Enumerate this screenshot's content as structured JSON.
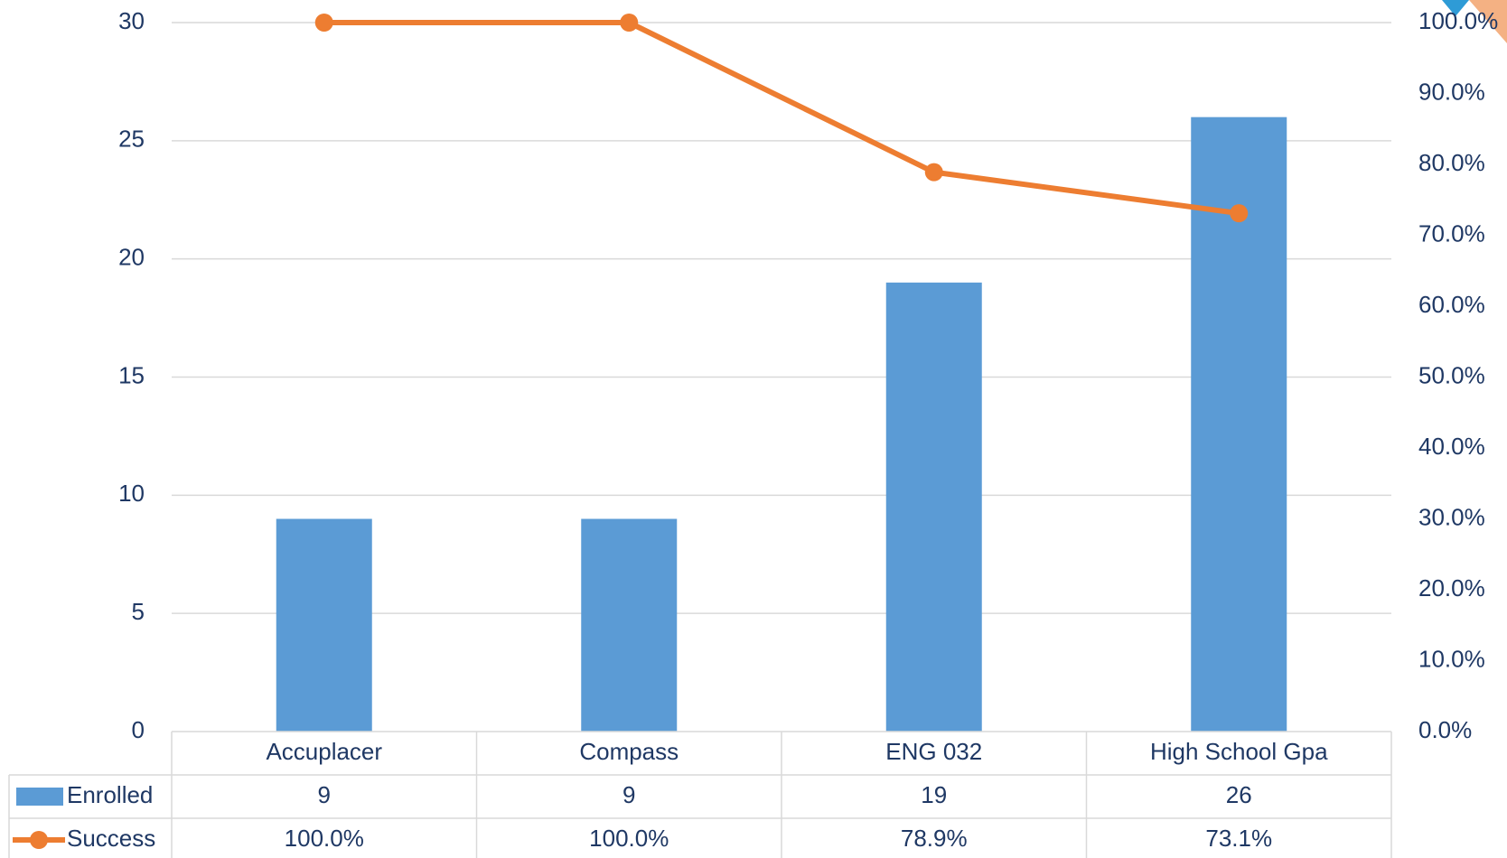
{
  "chart_data": {
    "type": "bar",
    "categories": [
      "Accuplacer",
      "Compass",
      "ENG 032",
      "High School Gpa"
    ],
    "series": [
      {
        "name": "Enrolled",
        "kind": "bar",
        "axis": "left",
        "color": "#5b9bd5",
        "values": [
          9,
          9,
          19,
          26
        ],
        "labels": [
          "9",
          "9",
          "19",
          "26"
        ]
      },
      {
        "name": "Success",
        "kind": "line",
        "axis": "right",
        "color": "#ed7d31",
        "values": [
          100.0,
          100.0,
          78.9,
          73.1
        ],
        "labels": [
          "100.0%",
          "100.0%",
          "78.9%",
          "73.1%"
        ]
      }
    ],
    "y_left": {
      "min": 0,
      "max": 30,
      "ticks": [
        "0",
        "5",
        "10",
        "15",
        "20",
        "25",
        "30"
      ]
    },
    "y_right": {
      "min": 0,
      "max": 100,
      "ticks": [
        "0.0%",
        "10.0%",
        "20.0%",
        "30.0%",
        "40.0%",
        "50.0%",
        "60.0%",
        "70.0%",
        "80.0%",
        "90.0%",
        "100.0%"
      ]
    },
    "grid": true,
    "legend": "data-table"
  },
  "colors": {
    "grid": "#d9d9d9",
    "text": "#1f3864",
    "decor_orange": "#f4b183",
    "decor_blue": "#2e9bd6"
  }
}
